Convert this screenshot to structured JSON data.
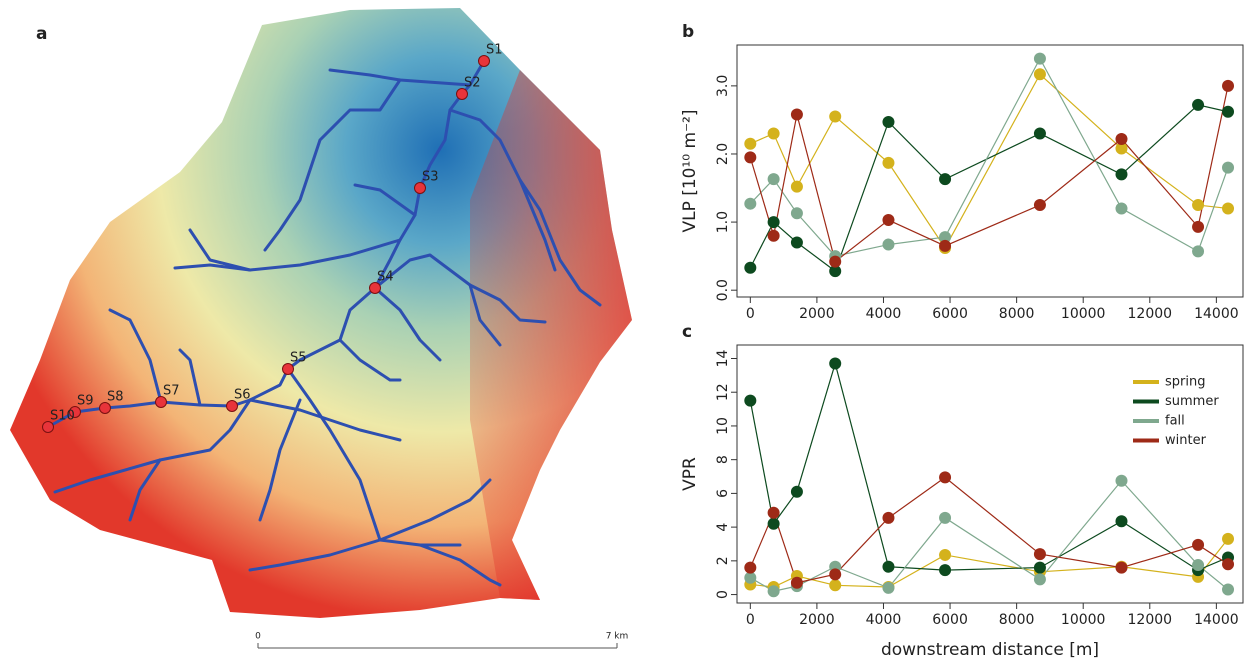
{
  "map": {
    "label": "a",
    "sites": [
      "S1",
      "S2",
      "S3",
      "S4",
      "S5",
      "S6",
      "S7",
      "S8",
      "S9",
      "S10"
    ],
    "scale": [
      "0",
      "7 km"
    ]
  },
  "chart_data": [
    {
      "type": "line",
      "label": "b",
      "y_label": "VLP [10¹⁰ m⁻²]",
      "x": [
        0,
        700,
        1400,
        2550,
        4150,
        5850,
        8700,
        11150,
        13450,
        14350
      ],
      "xlim": [
        -400,
        14800
      ],
      "xticks": [
        0,
        2000,
        4000,
        6000,
        8000,
        10000,
        12000,
        14000
      ],
      "ylim": [
        -0.1,
        3.6
      ],
      "yticks": [
        {
          "value": 0,
          "label": "0.0"
        },
        {
          "value": 1,
          "label": "1.0"
        },
        {
          "value": 2,
          "label": "2.0"
        },
        {
          "value": 3,
          "label": "3.0"
        }
      ],
      "legend": false,
      "series": [
        {
          "color": "#d4b21c",
          "values": [
            2.15,
            2.3,
            1.52,
            2.55,
            1.87,
            0.62,
            3.17,
            2.08,
            1.25,
            1.2
          ]
        },
        {
          "color": "#0d4a1f",
          "values": [
            0.33,
            1.0,
            0.7,
            0.28,
            2.47,
            1.63,
            2.3,
            1.7,
            2.72,
            2.62
          ]
        },
        {
          "color": "#7fa88e",
          "values": [
            1.27,
            1.63,
            1.13,
            0.5,
            0.67,
            0.78,
            3.4,
            1.2,
            0.57,
            1.8
          ]
        },
        {
          "color": "#9e2a17",
          "values": [
            1.95,
            0.8,
            2.58,
            0.42,
            1.03,
            0.65,
            1.25,
            2.22,
            0.93,
            3.0
          ]
        }
      ]
    },
    {
      "type": "line",
      "label": "c",
      "y_label": "VPR",
      "x_label": "downstream distance [m]",
      "x": [
        0,
        700,
        1400,
        2550,
        4150,
        5850,
        8700,
        11150,
        13450,
        14350
      ],
      "xlim": [
        -400,
        14800
      ],
      "xticks": [
        0,
        2000,
        4000,
        6000,
        8000,
        10000,
        12000,
        14000
      ],
      "ylim": [
        -0.5,
        14.8
      ],
      "yticks": [
        0,
        2,
        4,
        6,
        8,
        10,
        12,
        14
      ],
      "legend": "top-right",
      "series": [
        {
          "name": "spring",
          "color": "#d4b21c",
          "values": [
            0.6,
            0.45,
            1.1,
            0.55,
            0.45,
            2.35,
            1.35,
            1.65,
            1.05,
            3.3
          ]
        },
        {
          "name": "summer",
          "color": "#0d4a1f",
          "values": [
            11.5,
            4.2,
            6.1,
            13.7,
            1.65,
            1.45,
            1.6,
            4.35,
            1.45,
            2.2
          ]
        },
        {
          "name": "fall",
          "color": "#7fa88e",
          "values": [
            1.0,
            0.2,
            0.5,
            1.65,
            0.4,
            4.55,
            0.9,
            6.75,
            1.75,
            0.3
          ]
        },
        {
          "name": "winter",
          "color": "#9e2a17",
          "values": [
            1.6,
            4.85,
            0.7,
            1.2,
            4.55,
            6.95,
            2.4,
            1.6,
            2.95,
            1.8
          ]
        }
      ]
    }
  ]
}
